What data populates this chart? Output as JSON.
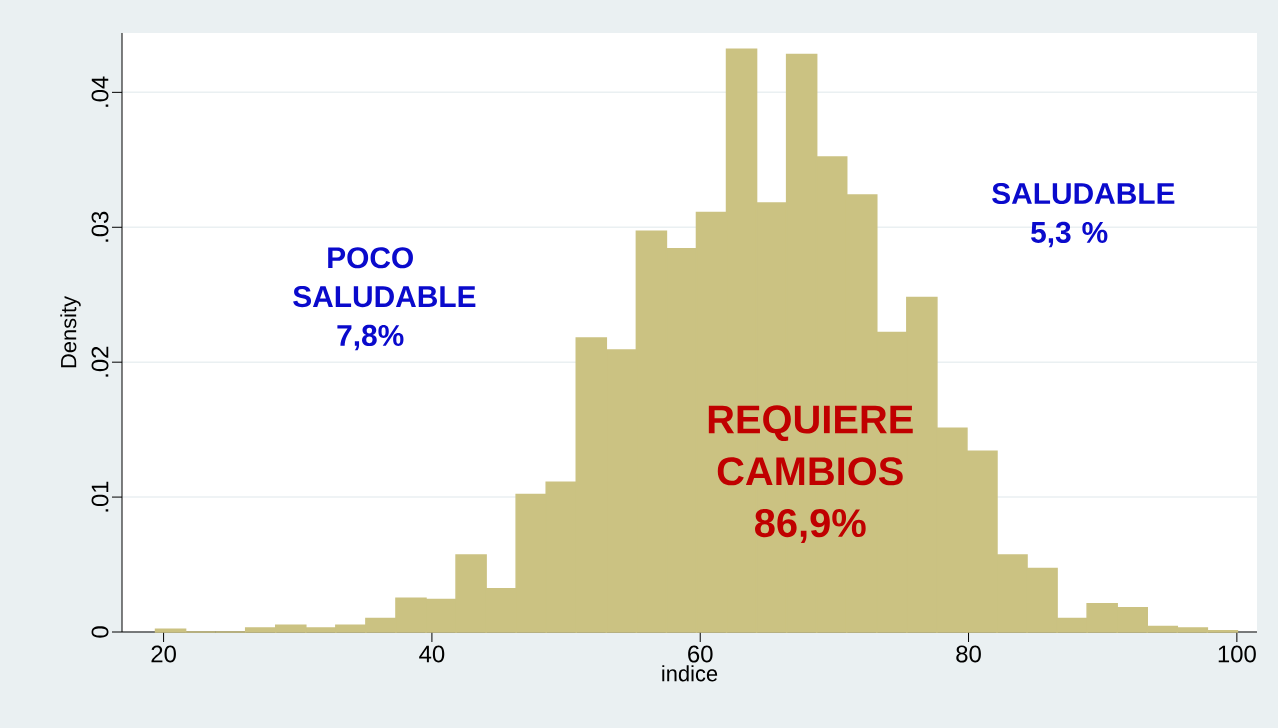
{
  "chart_data": {
    "type": "histogram",
    "xlabel": "indice",
    "ylabel": "Density",
    "bins": [
      19.4,
      21.64,
      23.88,
      26.12,
      28.36,
      30.6,
      32.84,
      35.08,
      37.32,
      39.56,
      41.8,
      44.04,
      46.28,
      48.52,
      50.76,
      53.0,
      55.24,
      57.48,
      59.72,
      61.96,
      64.2,
      66.44,
      68.68,
      70.92,
      73.16,
      75.4,
      77.64,
      79.88,
      82.12,
      84.36,
      86.6,
      88.84,
      91.08,
      93.32,
      95.56,
      97.8,
      100.04
    ],
    "values": [
      0.0002,
      0,
      0,
      0.0003,
      0.0005,
      0.0003,
      0.0005,
      0.001,
      0.0025,
      0.0024,
      0.0057,
      0.0032,
      0.0102,
      0.0111,
      0.0218,
      0.0209,
      0.0297,
      0.0284,
      0.0311,
      0.0432,
      0.0318,
      0.0428,
      0.0352,
      0.0324,
      0.0222,
      0.0248,
      0.0151,
      0.0134,
      0.0057,
      0.0047,
      0.001,
      0.0021,
      0.0018,
      0.0004,
      0.0003,
      0.0001
    ],
    "color": "#cbc282",
    "xlim": [
      16.9,
      101.5
    ],
    "ylim": [
      0,
      0.0444
    ],
    "xticks": [
      20,
      40,
      60,
      80,
      100
    ],
    "yticks": [
      0,
      {
        "value": 0.01,
        "label": ".01"
      },
      {
        "value": 0.02,
        "label": ".02"
      },
      {
        "value": 0.03,
        "label": ".03"
      },
      {
        "value": 0.04,
        "label": ".04"
      }
    ],
    "grid": "y",
    "annotations": [
      "POCO SALUDABLE 7,8%",
      "SALUDABLE 5,3 %",
      "REQUIERE CAMBIOS 86,9%"
    ]
  }
}
